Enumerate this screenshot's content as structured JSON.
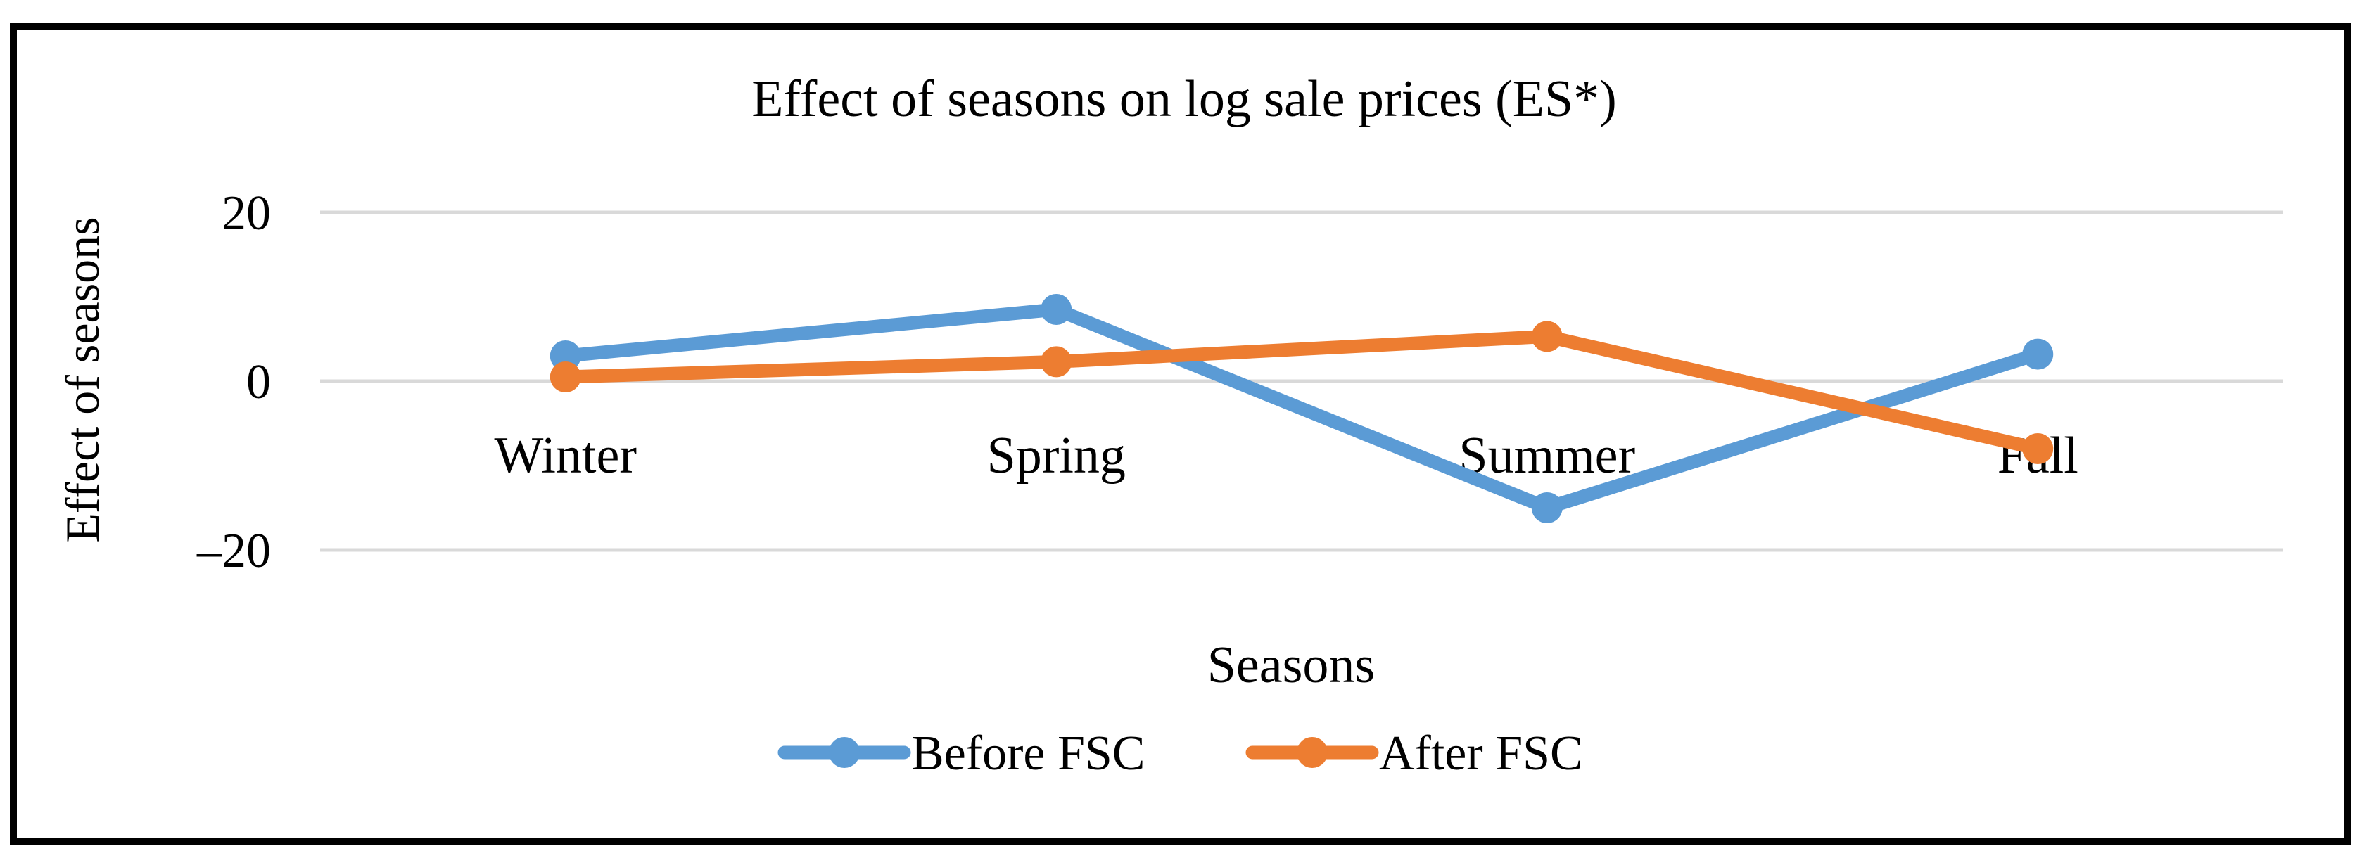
{
  "chart_data": {
    "type": "line",
    "title": "Effect of seasons on log sale prices (ES*)",
    "xlabel": "Seasons",
    "ylabel": "Effect of seasons",
    "categories": [
      "Winter",
      "Spring",
      "Summer",
      "Fall"
    ],
    "y_ticks": [
      20,
      0,
      -20
    ],
    "y_tick_labels": [
      "20",
      "0",
      "–20"
    ],
    "ylim": [
      -20,
      20
    ],
    "grid": true,
    "legend_position": "bottom",
    "series": [
      {
        "name": "Before FSC",
        "color": "#5B9BD5",
        "values": [
          3.0,
          8.5,
          -15.0,
          3.2
        ]
      },
      {
        "name": "After FSC",
        "color": "#ED7D31",
        "values": [
          0.5,
          2.3,
          5.3,
          -8.0
        ]
      }
    ]
  }
}
